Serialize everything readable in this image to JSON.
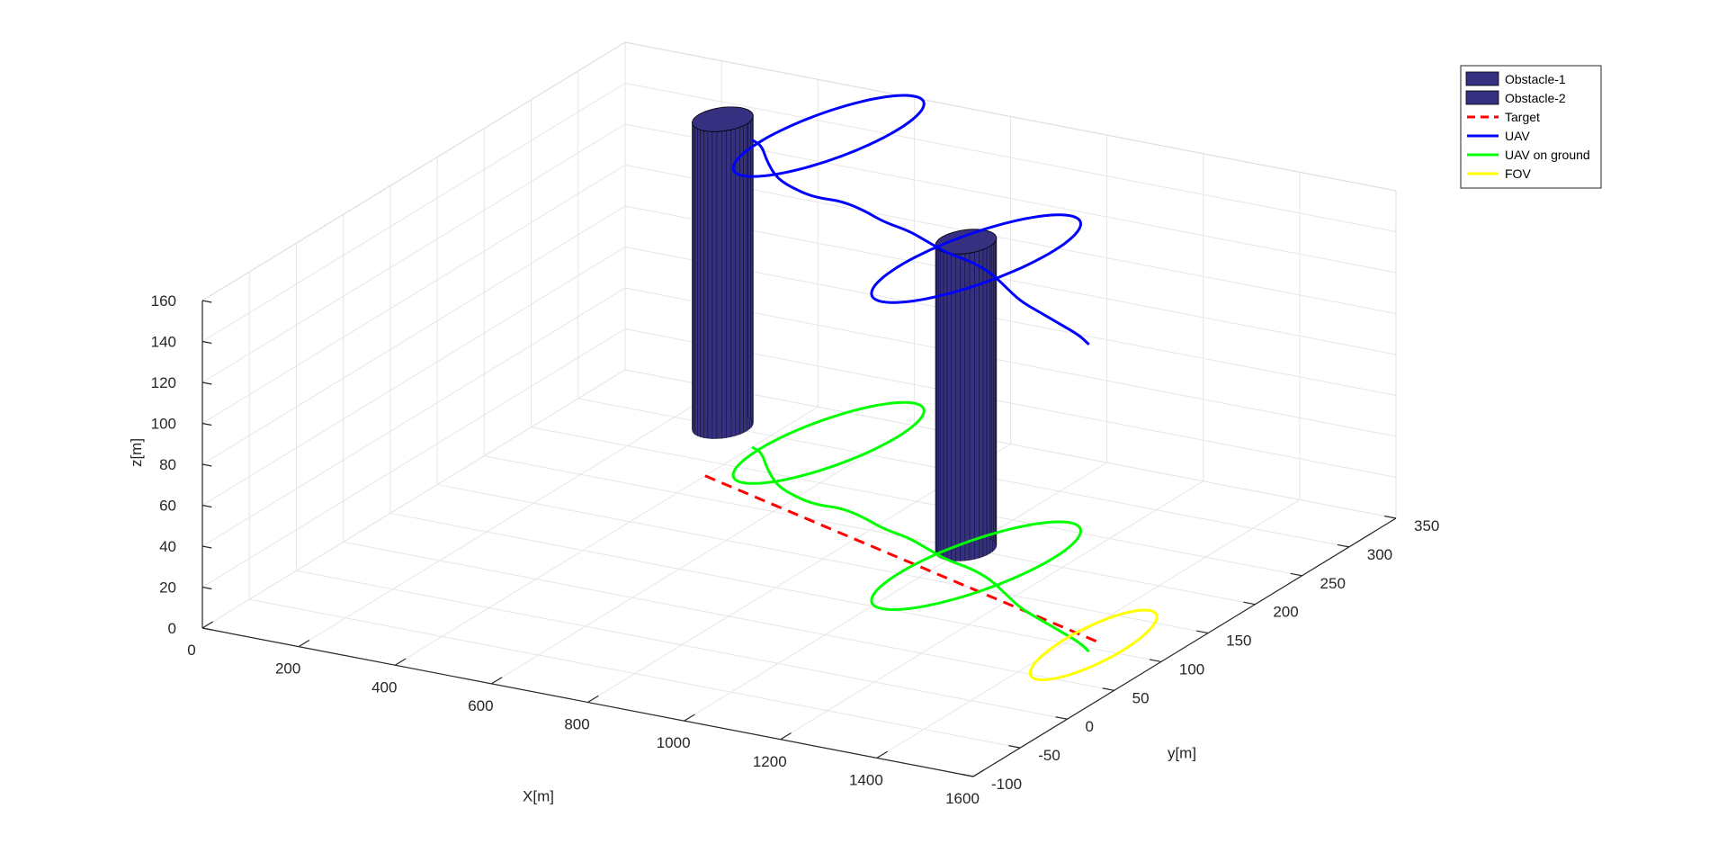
{
  "chart_data": {
    "type": "line",
    "subtype": "3d-trajectory",
    "title": "",
    "xlabel": "X[m]",
    "ylabel": "y[m]",
    "zlabel": "z[m]",
    "xlim": [
      0,
      1600
    ],
    "ylim": [
      -100,
      350
    ],
    "zlim": [
      0,
      160
    ],
    "xticks": [
      0,
      200,
      400,
      600,
      800,
      1000,
      1200,
      1400,
      1600
    ],
    "yticks": [
      -100,
      -50,
      0,
      50,
      100,
      150,
      200,
      250,
      300,
      350
    ],
    "zticks": [
      0,
      20,
      40,
      60,
      80,
      100,
      120,
      140,
      160
    ],
    "grid": true,
    "legend_position": "top-right",
    "colors": {
      "obstacle": "#35307f",
      "target": "#ff0000",
      "uav": "#0000ff",
      "uav_ground": "#00ff00",
      "fov": "#ffff00"
    },
    "legend": [
      {
        "label": "Obstacle-1",
        "kind": "patch",
        "color": "#35307f"
      },
      {
        "label": "Obstacle-2",
        "kind": "patch",
        "color": "#35307f"
      },
      {
        "label": "Target",
        "kind": "dashed",
        "color": "#ff0000"
      },
      {
        "label": "UAV",
        "kind": "line",
        "color": "#0000ff"
      },
      {
        "label": "UAV on ground",
        "kind": "line",
        "color": "#00ff00"
      },
      {
        "label": "FOV",
        "kind": "line",
        "color": "#ffff00"
      }
    ],
    "obstacles": [
      {
        "name": "Obstacle-1",
        "center": [
          300,
          300
        ],
        "radius_x": 50,
        "radius_y": 20,
        "height": 150
      },
      {
        "name": "Obstacle-2",
        "center": [
          1000,
          200
        ],
        "radius_x": 50,
        "radius_y": 20,
        "height": 150
      }
    ],
    "target": {
      "x": [
        400,
        1450
      ],
      "y": [
        230,
        110
      ],
      "z": [
        0,
        0
      ]
    },
    "uav": {
      "z": 150,
      "loops": [
        {
          "cx": 510,
          "cy": 305,
          "rx": 100,
          "ry": 65,
          "turns": 1
        },
        {
          "cx": 1060,
          "cy": 180,
          "rx": 110,
          "ry": 70,
          "turns": 1
        }
      ],
      "x": [
        400,
        430,
        480,
        540,
        600,
        650,
        700,
        760,
        820,
        880,
        940,
        1000,
        1060,
        1120,
        1180,
        1240,
        1300,
        1360,
        1420,
        1460
      ],
      "y": [
        280,
        275,
        255,
        235,
        225,
        220,
        222,
        215,
        205,
        200,
        190,
        180,
        175,
        165,
        150,
        135,
        125,
        115,
        105,
        95
      ]
    },
    "fov": {
      "cx": 1450,
      "cy": 105,
      "rx": 60,
      "ry": 60,
      "z": 0
    }
  }
}
